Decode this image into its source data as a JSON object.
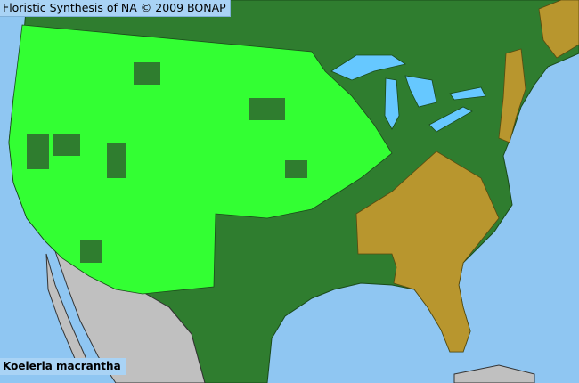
{
  "header": {
    "title": "Floristic Synthesis of NA © 2009 BONAP"
  },
  "species_label": "Koeleria macrantha",
  "colors": {
    "ocean": "#8fc6f2",
    "lakes": "#66c8ff",
    "present_native": "#2e7d32",
    "present_county": "#33ff33",
    "absent_exotic_state": "#b8962e",
    "mexico": "#c0c0c0",
    "county_lines": "#1a4a1a"
  }
}
